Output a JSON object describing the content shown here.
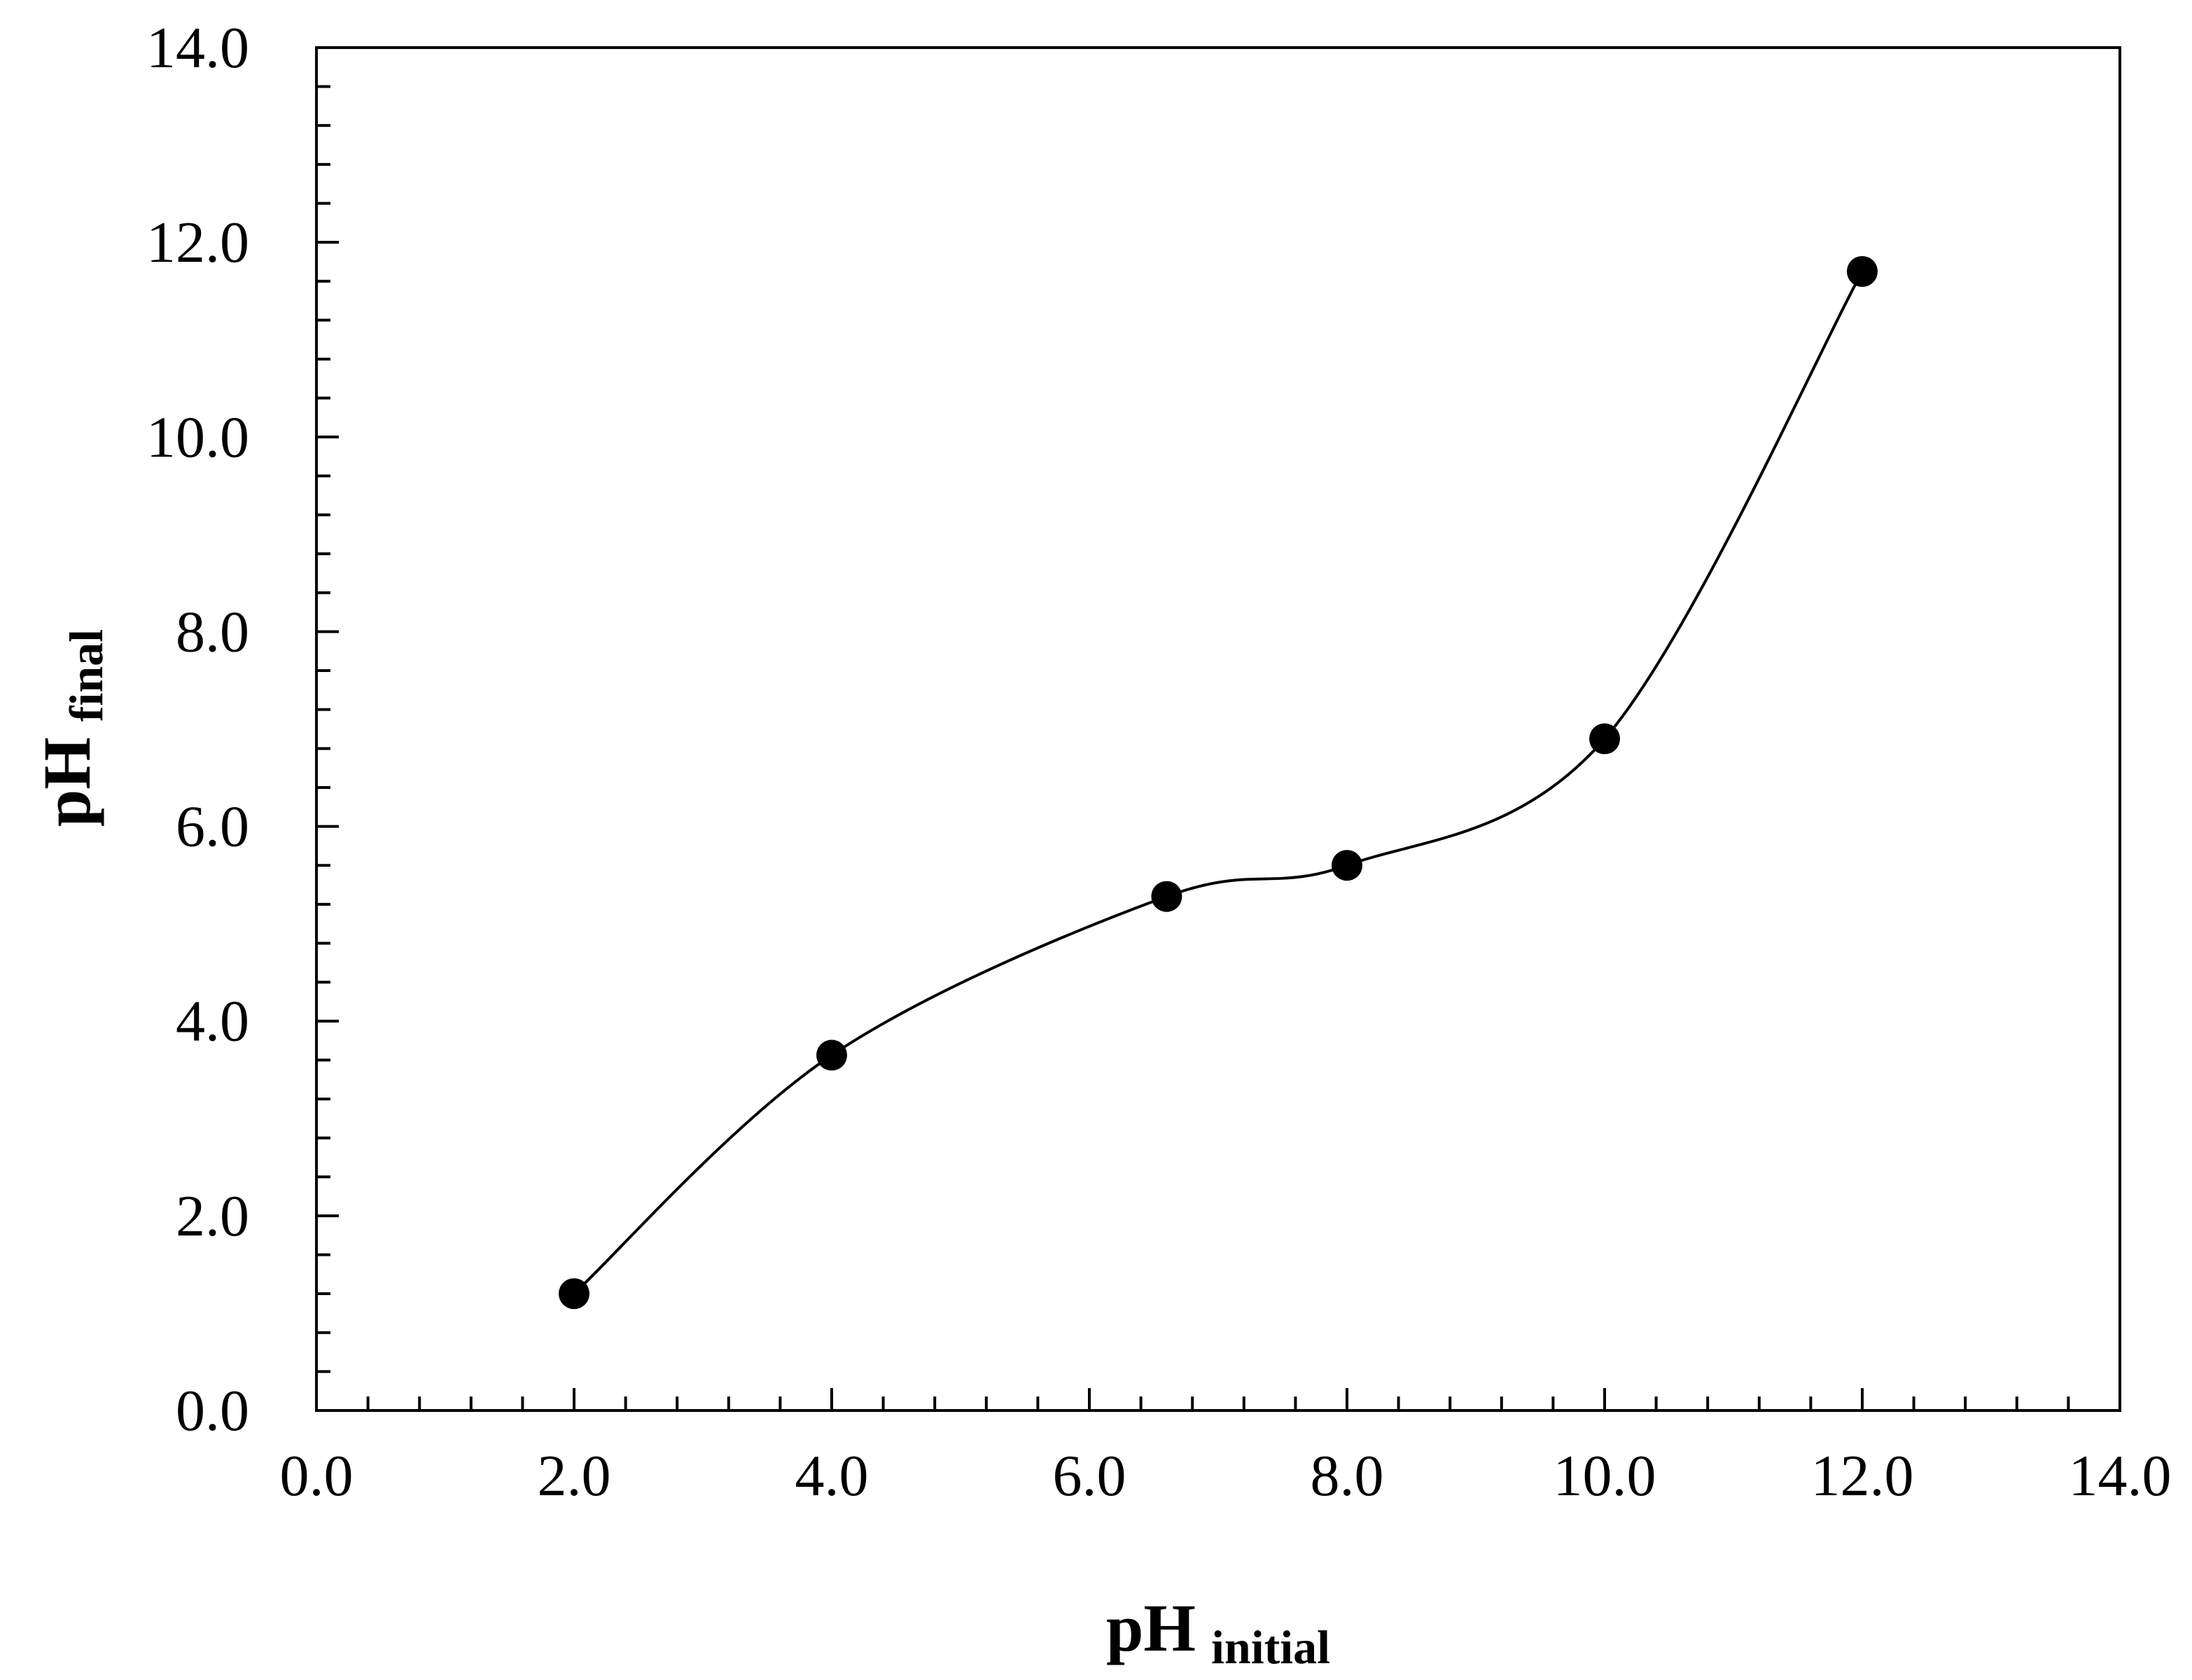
{
  "chart_data": {
    "type": "line",
    "title": "",
    "xlabel": {
      "main": "pH",
      "sub": "initial"
    },
    "ylabel": {
      "main": "pH",
      "sub": "final"
    },
    "xlim": [
      0,
      14
    ],
    "ylim": [
      0,
      14
    ],
    "x_ticks": [
      "0.0",
      "2.0",
      "4.0",
      "6.0",
      "8.0",
      "10.0",
      "12.0",
      "14.0"
    ],
    "y_ticks": [
      "0.0",
      "2.0",
      "4.0",
      "6.0",
      "8.0",
      "10.0",
      "12.0",
      "14.0"
    ],
    "x_minor_step": 0.4,
    "y_minor_step": 0.4,
    "grid": false,
    "legend": "none",
    "series": [
      {
        "marker": "filled-circle",
        "smooth_line": true,
        "color": "#000000",
        "points": [
          {
            "x": 2.0,
            "y": 1.2
          },
          {
            "x": 4.0,
            "y": 3.65
          },
          {
            "x": 6.6,
            "y": 5.28
          },
          {
            "x": 8.0,
            "y": 5.6
          },
          {
            "x": 10.0,
            "y": 6.9
          },
          {
            "x": 12.0,
            "y": 11.7
          }
        ]
      }
    ]
  }
}
